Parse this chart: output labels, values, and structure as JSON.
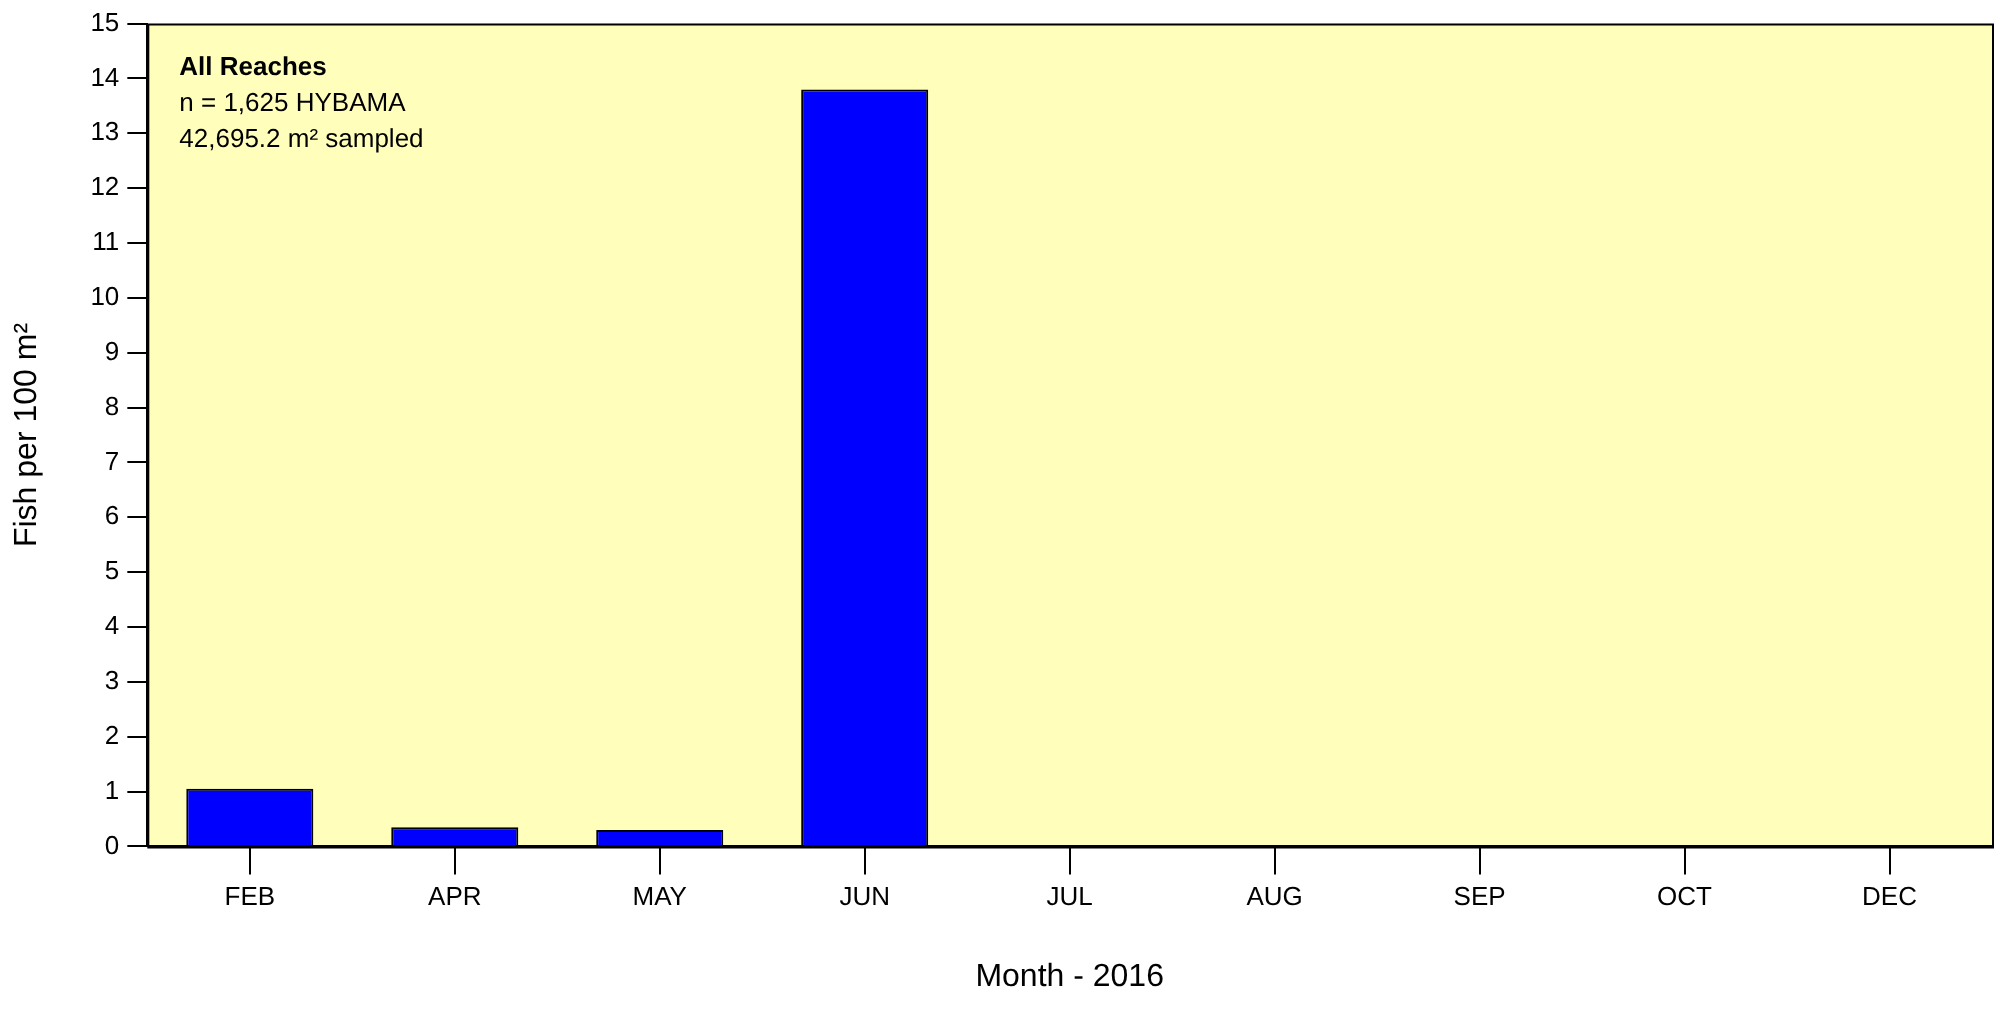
{
  "chart_data": {
    "type": "bar",
    "xlabel": "Month - 2016",
    "ylabel": "Fish per 100 m²",
    "categories": [
      "FEB",
      "APR",
      "MAY",
      "JUN",
      "JUL",
      "AUG",
      "SEP",
      "OCT",
      "DEC"
    ],
    "values": [
      1.05,
      0.35,
      0.3,
      13.8,
      0,
      0,
      0,
      0,
      0
    ],
    "color": "#0000ff",
    "ylim": [
      0,
      15
    ],
    "yticks": [
      0,
      1,
      2,
      3,
      4,
      5,
      6,
      7,
      8,
      9,
      10,
      11,
      12,
      13,
      14,
      15
    ],
    "grid": false,
    "annotations": [
      "All Reaches",
      "n = 1,625 HYBAMA",
      "42,695.2 m² sampled"
    ]
  }
}
